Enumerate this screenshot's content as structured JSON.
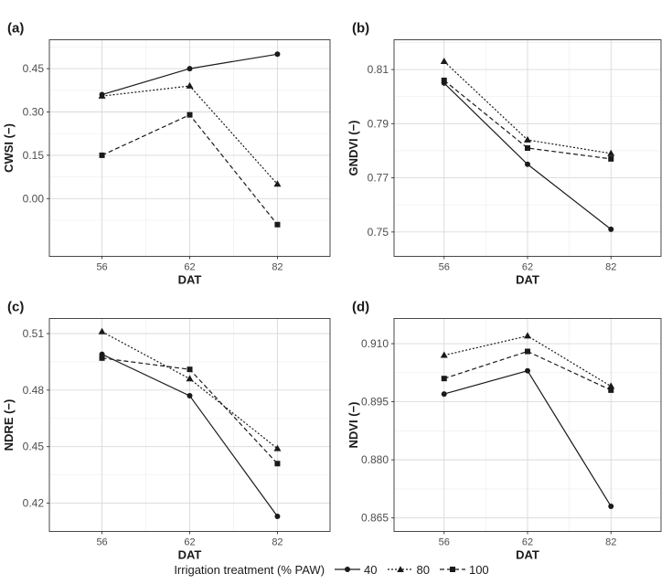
{
  "legend": {
    "title": "Irrigation treatment (% PAW)",
    "entries": [
      {
        "name": "40",
        "marker": "circle",
        "dash": "solid"
      },
      {
        "name": "80",
        "marker": "triangle",
        "dash": "dotted"
      },
      {
        "name": "100",
        "marker": "square",
        "dash": "dashed"
      }
    ]
  },
  "colors": {
    "line": "#1a1a1a",
    "grid_major": "#d9d9d9",
    "grid_minor": "#ededed",
    "panel_border": "#333333",
    "tick_text": "#4d4d4d"
  },
  "chart_data": [
    {
      "panel_label": "(a)",
      "type": "line",
      "xlabel": "DAT",
      "ylabel": "CWSI (−)",
      "categories": [
        "56",
        "62",
        "82"
      ],
      "ylim": [
        -0.2,
        0.55
      ],
      "yticks": [
        0.0,
        0.15,
        0.3,
        0.45
      ],
      "ytick_labels": [
        "0.00",
        "0.15",
        "0.30",
        "0.45"
      ],
      "grid": true,
      "series": [
        {
          "name": "40",
          "values": [
            0.36,
            0.45,
            0.5
          ]
        },
        {
          "name": "80",
          "values": [
            0.355,
            0.39,
            0.05
          ]
        },
        {
          "name": "100",
          "values": [
            0.15,
            0.29,
            -0.09
          ]
        }
      ]
    },
    {
      "panel_label": "(b)",
      "type": "line",
      "xlabel": "DAT",
      "ylabel": "GNDVI (−)",
      "categories": [
        "56",
        "62",
        "82"
      ],
      "ylim": [
        0.741,
        0.821
      ],
      "yticks": [
        0.75,
        0.77,
        0.79,
        0.81
      ],
      "ytick_labels": [
        "0.75",
        "0.77",
        "0.79",
        "0.81"
      ],
      "grid": true,
      "series": [
        {
          "name": "40",
          "values": [
            0.805,
            0.775,
            0.751
          ]
        },
        {
          "name": "80",
          "values": [
            0.813,
            0.784,
            0.779
          ]
        },
        {
          "name": "100",
          "values": [
            0.806,
            0.781,
            0.777
          ]
        }
      ]
    },
    {
      "panel_label": "(c)",
      "type": "line",
      "xlabel": "DAT",
      "ylabel": "NDRE (−)",
      "categories": [
        "56",
        "62",
        "82"
      ],
      "ylim": [
        0.405,
        0.518
      ],
      "yticks": [
        0.42,
        0.45,
        0.48,
        0.51
      ],
      "ytick_labels": [
        "0.42",
        "0.45",
        "0.48",
        "0.51"
      ],
      "grid": true,
      "series": [
        {
          "name": "40",
          "values": [
            0.499,
            0.477,
            0.413
          ]
        },
        {
          "name": "80",
          "values": [
            0.511,
            0.486,
            0.449
          ]
        },
        {
          "name": "100",
          "values": [
            0.497,
            0.491,
            0.441
          ]
        }
      ]
    },
    {
      "panel_label": "(d)",
      "type": "line",
      "xlabel": "DAT",
      "ylabel": "NDVI (−)",
      "categories": [
        "56",
        "62",
        "82"
      ],
      "ylim": [
        0.8615,
        0.9165
      ],
      "yticks": [
        0.865,
        0.88,
        0.895,
        0.91
      ],
      "ytick_labels": [
        "0.865",
        "0.880",
        "0.895",
        "0.910"
      ],
      "grid": true,
      "series": [
        {
          "name": "40",
          "values": [
            0.897,
            0.903,
            0.868
          ]
        },
        {
          "name": "80",
          "values": [
            0.907,
            0.912,
            0.899
          ]
        },
        {
          "name": "100",
          "values": [
            0.901,
            0.908,
            0.898
          ]
        }
      ]
    }
  ]
}
